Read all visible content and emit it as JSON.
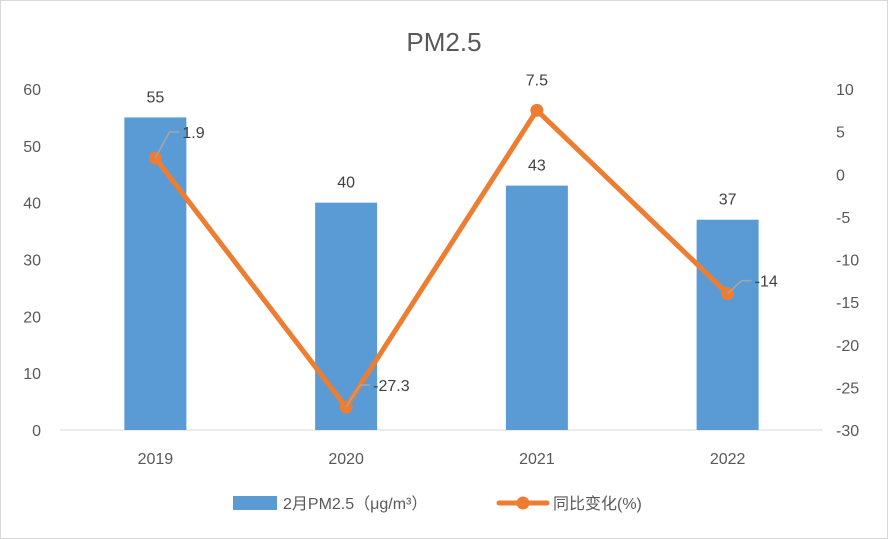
{
  "chart_data": {
    "type": "bar+line",
    "title": "PM2.5",
    "categories": [
      "2019",
      "2020",
      "2021",
      "2022"
    ],
    "series": [
      {
        "name": "2月PM2.5（μg/m³）",
        "type": "bar",
        "axis": "left",
        "values": [
          55,
          40,
          43,
          37
        ],
        "color": "#5b9bd5"
      },
      {
        "name": "同比变化(%)",
        "type": "line",
        "axis": "right",
        "values": [
          1.9,
          -27.3,
          7.5,
          -14
        ],
        "color": "#ed7d31"
      }
    ],
    "y_left": {
      "min": 0,
      "max": 60,
      "step": 10
    },
    "y_right": {
      "min": -30,
      "max": 10,
      "step": 5
    },
    "grid": false,
    "legend_position": "bottom"
  }
}
